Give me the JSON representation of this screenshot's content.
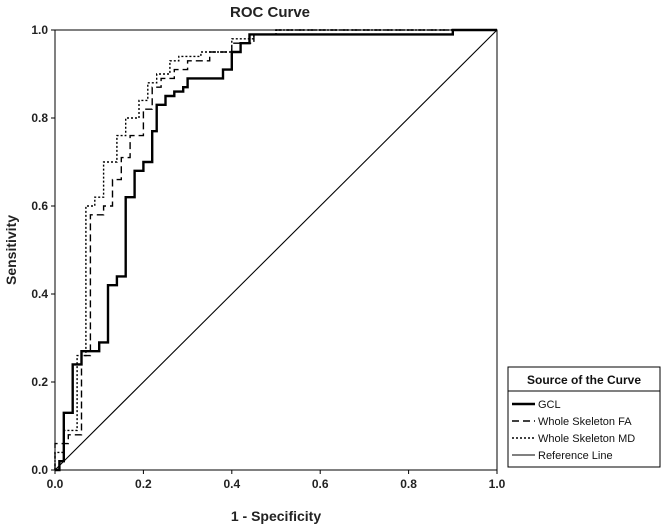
{
  "chart_data": {
    "type": "line",
    "title": "ROC Curve",
    "xlabel": "1 - Specificity",
    "ylabel": "Sensitivity",
    "xlim": [
      0,
      1
    ],
    "ylim": [
      0,
      1
    ],
    "xticks": [
      "0.0",
      "0.2",
      "0.4",
      "0.6",
      "0.8",
      "1.0"
    ],
    "yticks": [
      "0.0",
      "0.2",
      "0.4",
      "0.6",
      "0.8",
      "1.0"
    ],
    "grid": false,
    "legend": {
      "title": "Source of the Curve",
      "placement": "right"
    },
    "series": [
      {
        "name": "GCL",
        "style": "solid-thick",
        "color": "#000000",
        "x": [
          0,
          0.01,
          0.01,
          0.02,
          0.02,
          0.04,
          0.04,
          0.06,
          0.06,
          0.1,
          0.1,
          0.12,
          0.12,
          0.14,
          0.14,
          0.16,
          0.16,
          0.18,
          0.18,
          0.2,
          0.2,
          0.22,
          0.22,
          0.23,
          0.23,
          0.25,
          0.25,
          0.27,
          0.27,
          0.29,
          0.29,
          0.3,
          0.3,
          0.38,
          0.38,
          0.4,
          0.4,
          0.42,
          0.42,
          0.44,
          0.44,
          0.9,
          0.9,
          1.0
        ],
        "y": [
          0,
          0,
          0.02,
          0.02,
          0.13,
          0.13,
          0.24,
          0.24,
          0.27,
          0.27,
          0.29,
          0.29,
          0.42,
          0.42,
          0.44,
          0.44,
          0.62,
          0.62,
          0.68,
          0.68,
          0.7,
          0.7,
          0.77,
          0.77,
          0.83,
          0.83,
          0.85,
          0.85,
          0.86,
          0.86,
          0.87,
          0.87,
          0.89,
          0.89,
          0.91,
          0.91,
          0.95,
          0.95,
          0.97,
          0.97,
          0.99,
          0.99,
          1.0,
          1.0
        ]
      },
      {
        "name": "Whole Skeleton FA",
        "style": "dashed",
        "color": "#000000",
        "x": [
          0,
          0,
          0.03,
          0.03,
          0.06,
          0.06,
          0.08,
          0.08,
          0.11,
          0.11,
          0.13,
          0.13,
          0.15,
          0.15,
          0.17,
          0.17,
          0.2,
          0.2,
          0.22,
          0.22,
          0.24,
          0.24,
          0.27,
          0.27,
          0.3,
          0.3,
          0.35,
          0.35,
          0.4,
          0.4,
          0.45,
          0.45,
          0.5,
          0.5,
          1.0
        ],
        "y": [
          0,
          0.06,
          0.06,
          0.08,
          0.08,
          0.26,
          0.26,
          0.58,
          0.58,
          0.6,
          0.6,
          0.66,
          0.66,
          0.71,
          0.71,
          0.76,
          0.76,
          0.82,
          0.82,
          0.87,
          0.87,
          0.89,
          0.89,
          0.91,
          0.91,
          0.93,
          0.93,
          0.95,
          0.95,
          0.97,
          0.97,
          0.99,
          0.99,
          1.0,
          1.0
        ]
      },
      {
        "name": "Whole Skeleton MD",
        "style": "dotted",
        "color": "#000000",
        "x": [
          0,
          0,
          0.02,
          0.02,
          0.05,
          0.05,
          0.07,
          0.07,
          0.09,
          0.09,
          0.11,
          0.11,
          0.14,
          0.14,
          0.16,
          0.16,
          0.19,
          0.19,
          0.21,
          0.21,
          0.23,
          0.23,
          0.26,
          0.26,
          0.28,
          0.28,
          0.33,
          0.33,
          0.4,
          0.4,
          0.45,
          0.45,
          0.5,
          0.5,
          1.0
        ],
        "y": [
          0,
          0.04,
          0.04,
          0.09,
          0.09,
          0.26,
          0.26,
          0.6,
          0.6,
          0.62,
          0.62,
          0.7,
          0.7,
          0.76,
          0.76,
          0.8,
          0.8,
          0.84,
          0.84,
          0.88,
          0.88,
          0.9,
          0.9,
          0.93,
          0.93,
          0.94,
          0.94,
          0.95,
          0.95,
          0.98,
          0.98,
          0.99,
          0.99,
          1.0,
          1.0
        ]
      },
      {
        "name": "Reference Line",
        "style": "solid-thin",
        "color": "#000000",
        "x": [
          0,
          1
        ],
        "y": [
          0,
          1
        ]
      }
    ]
  }
}
